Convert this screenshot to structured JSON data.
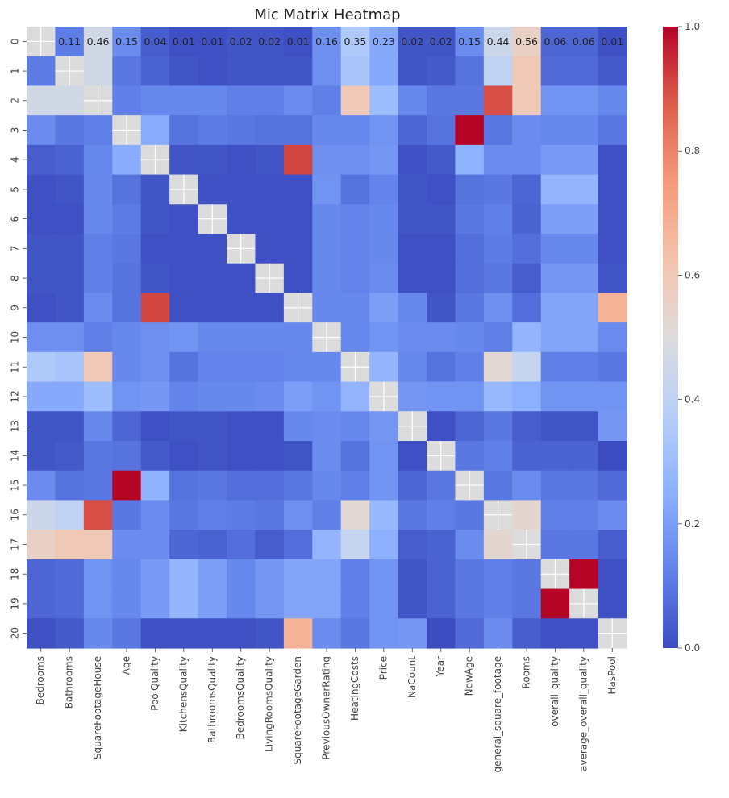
{
  "chart_data": {
    "type": "heatmap",
    "title": "Mic Matrix Heatmap",
    "colormap": "coolwarm",
    "colorbar": {
      "min": 0.0,
      "max": 1.0,
      "ticks": [
        "0.0",
        "0.2",
        "0.4",
        "0.6",
        "0.8",
        "1.0"
      ]
    },
    "row_labels": [
      "0",
      "1",
      "2",
      "3",
      "4",
      "5",
      "6",
      "7",
      "8",
      "9",
      "10",
      "11",
      "12",
      "13",
      "14",
      "15",
      "16",
      "17",
      "18",
      "19",
      "20"
    ],
    "col_labels": [
      "Bedrooms",
      "Bathrooms",
      "SquareFootageHouse",
      "Age",
      "PoolQuality",
      "KitchensQuality",
      "BathroomsQuality",
      "BedroomsQuality",
      "LivingRoomsQuality",
      "SquareFootageGarden",
      "PreviousOwnerRating",
      "HeatingCosts",
      "Price",
      "NaCount",
      "Year",
      "NewAge",
      "general_square_footage",
      "Rooms",
      "overall_quality",
      "average_overall_quality",
      "HasPool"
    ],
    "annotations_row_0": [
      "",
      "0.11",
      "0.46",
      "0.15",
      "0.04",
      "0.01",
      "0.01",
      "0.02",
      "0.02",
      "0.01",
      "0.16",
      "0.35",
      "0.23",
      "0.02",
      "0.02",
      "0.15",
      "0.44",
      "0.56",
      "0.06",
      "0.06",
      "0.01"
    ],
    "diagonal": "no-value",
    "values": [
      [
        null,
        0.11,
        0.46,
        0.15,
        0.04,
        0.01,
        0.01,
        0.02,
        0.02,
        0.01,
        0.16,
        0.35,
        0.23,
        0.02,
        0.02,
        0.15,
        0.44,
        0.56,
        0.06,
        0.06,
        0.01
      ],
      [
        0.11,
        null,
        0.46,
        0.1,
        0.05,
        0.02,
        0.01,
        0.02,
        0.02,
        0.02,
        0.16,
        0.33,
        0.23,
        0.02,
        0.03,
        0.09,
        0.4,
        0.6,
        0.07,
        0.07,
        0.03
      ],
      [
        0.46,
        0.46,
        null,
        0.12,
        0.14,
        0.14,
        0.14,
        0.12,
        0.12,
        0.15,
        0.12,
        0.6,
        0.3,
        0.14,
        0.1,
        0.1,
        0.9,
        0.6,
        0.17,
        0.17,
        0.14
      ],
      [
        0.15,
        0.1,
        0.12,
        null,
        0.24,
        0.09,
        0.11,
        0.1,
        0.09,
        0.09,
        0.14,
        0.14,
        0.17,
        0.06,
        0.09,
        1.0,
        0.1,
        0.15,
        0.14,
        0.14,
        0.1
      ],
      [
        0.04,
        0.05,
        0.14,
        0.24,
        null,
        0.02,
        0.02,
        0.01,
        0.02,
        0.91,
        0.16,
        0.16,
        0.18,
        0.01,
        0.03,
        0.26,
        0.15,
        0.15,
        0.19,
        0.19,
        0.01
      ],
      [
        0.01,
        0.02,
        0.14,
        0.09,
        0.02,
        null,
        0.01,
        0.01,
        0.01,
        0.01,
        0.17,
        0.09,
        0.13,
        0.02,
        0.01,
        0.09,
        0.1,
        0.06,
        0.27,
        0.27,
        0.01
      ],
      [
        0.01,
        0.01,
        0.14,
        0.11,
        0.02,
        0.01,
        null,
        0.01,
        0.01,
        0.01,
        0.14,
        0.13,
        0.14,
        0.02,
        0.02,
        0.1,
        0.12,
        0.05,
        0.2,
        0.2,
        0.01
      ],
      [
        0.02,
        0.02,
        0.12,
        0.1,
        0.01,
        0.01,
        0.01,
        null,
        0.01,
        0.01,
        0.14,
        0.13,
        0.14,
        0.01,
        0.01,
        0.08,
        0.11,
        0.08,
        0.14,
        0.14,
        0.01
      ],
      [
        0.02,
        0.02,
        0.12,
        0.09,
        0.02,
        0.01,
        0.01,
        0.01,
        null,
        0.01,
        0.14,
        0.13,
        0.15,
        0.01,
        0.01,
        0.08,
        0.1,
        0.04,
        0.18,
        0.18,
        0.02
      ],
      [
        0.01,
        0.02,
        0.15,
        0.09,
        0.91,
        0.01,
        0.01,
        0.01,
        0.01,
        null,
        0.14,
        0.14,
        0.2,
        0.14,
        0.02,
        0.1,
        0.16,
        0.08,
        0.22,
        0.22,
        0.68
      ],
      [
        0.16,
        0.16,
        0.12,
        0.14,
        0.16,
        0.17,
        0.14,
        0.14,
        0.14,
        0.14,
        null,
        0.14,
        0.17,
        0.15,
        0.15,
        0.14,
        0.12,
        0.27,
        0.22,
        0.22,
        0.15
      ],
      [
        0.35,
        0.33,
        0.6,
        0.14,
        0.16,
        0.09,
        0.13,
        0.13,
        0.13,
        0.14,
        0.14,
        null,
        0.27,
        0.14,
        0.09,
        0.12,
        0.52,
        0.42,
        0.12,
        0.12,
        0.1
      ],
      [
        0.23,
        0.23,
        0.3,
        0.17,
        0.18,
        0.13,
        0.14,
        0.14,
        0.15,
        0.2,
        0.17,
        0.27,
        null,
        0.18,
        0.17,
        0.17,
        0.28,
        0.25,
        0.17,
        0.17,
        0.17
      ],
      [
        0.02,
        0.02,
        0.14,
        0.06,
        0.01,
        0.02,
        0.02,
        0.01,
        0.01,
        0.14,
        0.15,
        0.14,
        0.18,
        null,
        0.01,
        0.06,
        0.1,
        0.04,
        0.02,
        0.02,
        0.18
      ],
      [
        0.02,
        0.03,
        0.1,
        0.09,
        0.03,
        0.01,
        0.02,
        0.01,
        0.01,
        0.02,
        0.15,
        0.09,
        0.17,
        0.01,
        null,
        0.1,
        0.12,
        0.05,
        0.05,
        0.05,
        0.0
      ],
      [
        0.15,
        0.09,
        0.1,
        1.0,
        0.26,
        0.09,
        0.1,
        0.08,
        0.08,
        0.1,
        0.14,
        0.12,
        0.17,
        0.06,
        0.1,
        null,
        0.1,
        0.15,
        0.1,
        0.1,
        0.07
      ],
      [
        0.44,
        0.4,
        0.9,
        0.1,
        0.15,
        0.1,
        0.12,
        0.11,
        0.1,
        0.16,
        0.12,
        0.52,
        0.28,
        0.1,
        0.12,
        0.1,
        null,
        0.53,
        0.12,
        0.12,
        0.15
      ],
      [
        0.56,
        0.6,
        0.6,
        0.15,
        0.15,
        0.06,
        0.05,
        0.08,
        0.04,
        0.08,
        0.27,
        0.42,
        0.25,
        0.04,
        0.05,
        0.15,
        0.53,
        null,
        0.1,
        0.1,
        0.04
      ],
      [
        0.06,
        0.07,
        0.17,
        0.14,
        0.19,
        0.27,
        0.2,
        0.14,
        0.18,
        0.22,
        0.22,
        0.12,
        0.17,
        0.02,
        0.05,
        0.1,
        0.12,
        0.1,
        null,
        1.0,
        0.01
      ],
      [
        0.06,
        0.07,
        0.17,
        0.14,
        0.19,
        0.27,
        0.2,
        0.14,
        0.18,
        0.22,
        0.22,
        0.12,
        0.17,
        0.02,
        0.05,
        0.1,
        0.12,
        0.1,
        1.0,
        null,
        0.01
      ],
      [
        0.01,
        0.03,
        0.14,
        0.1,
        0.01,
        0.01,
        0.01,
        0.01,
        0.02,
        0.68,
        0.15,
        0.1,
        0.17,
        0.18,
        0.0,
        0.07,
        0.15,
        0.04,
        0.01,
        0.01,
        null
      ]
    ]
  }
}
